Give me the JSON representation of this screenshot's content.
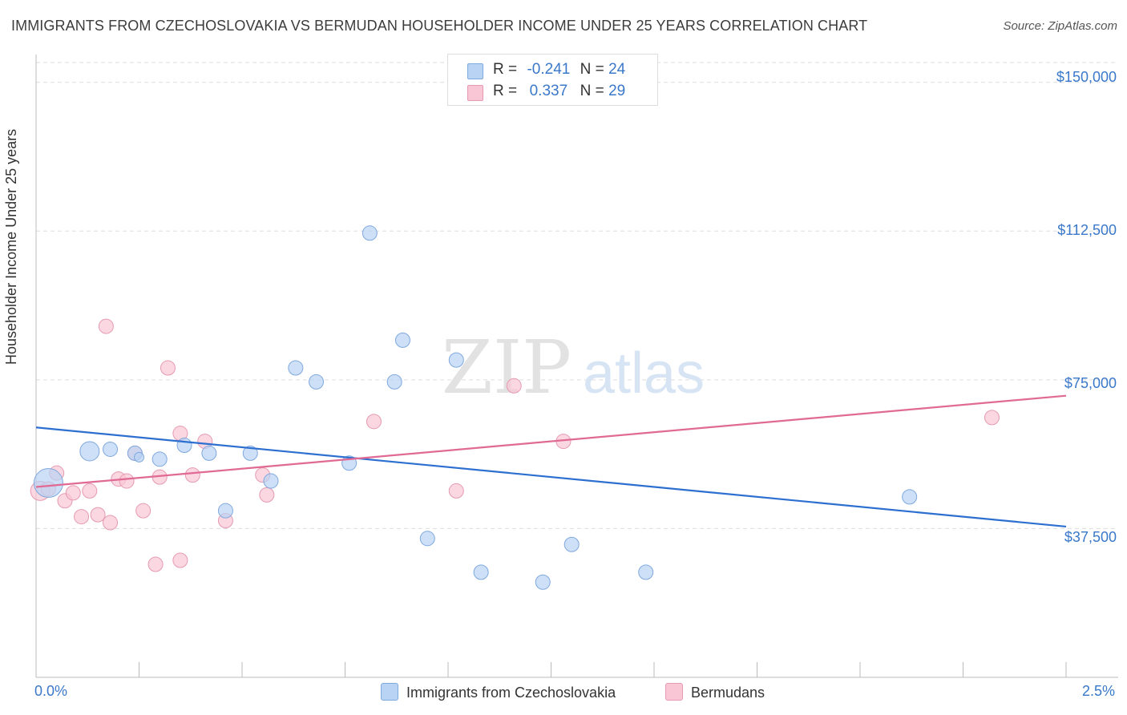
{
  "title": "IMMIGRANTS FROM CZECHOSLOVAKIA VS BERMUDAN HOUSEHOLDER INCOME UNDER 25 YEARS CORRELATION CHART",
  "source": "Source: ZipAtlas.com",
  "watermark": {
    "zip": "ZIP",
    "atlas": "atlas"
  },
  "legend": {
    "rows": [
      {
        "r_label": "R =",
        "r_value": "-0.241",
        "n_label": "N =",
        "n_value": "24"
      },
      {
        "r_label": "R =",
        "r_value": "0.337",
        "n_label": "N =",
        "n_value": "29"
      }
    ]
  },
  "bottom_legend": {
    "series1": "Immigrants from Czechoslovakia",
    "series2": "Bermudans"
  },
  "colors": {
    "blue_fill": "#b8d3f4",
    "blue_stroke": "#7fa8dd",
    "blue_line": "#2d6fd0",
    "pink_fill": "#f9c6d5",
    "pink_stroke": "#e59ab1",
    "pink_line": "#e06a93",
    "tick_text": "#3a78c9",
    "grid": "#dddddd"
  },
  "chart_data": {
    "type": "scatter",
    "title": "IMMIGRANTS FROM CZECHOSLOVAKIA VS BERMUDAN HOUSEHOLDER INCOME UNDER 25 YEARS CORRELATION CHART",
    "xlabel": "",
    "ylabel": "Householder Income Under 25 years",
    "xlim": [
      0.0,
      2.5
    ],
    "ylim": [
      0,
      155000
    ],
    "x_tick_labels": [
      "0.0%",
      "2.5%"
    ],
    "y_ticks": [
      37500,
      75000,
      112500,
      150000
    ],
    "y_tick_labels": [
      "$37,500",
      "$75,000",
      "$112,500",
      "$150,000"
    ],
    "series": [
      {
        "name": "Immigrants from Czechoslovakia",
        "r": -0.241,
        "n": 24,
        "trend": {
          "x": [
            0.0,
            2.5
          ],
          "y": [
            63000,
            38000
          ]
        },
        "points": [
          {
            "x": 0.03,
            "y": 49000,
            "size": 3
          },
          {
            "x": 0.13,
            "y": 57000,
            "size": 2
          },
          {
            "x": 0.18,
            "y": 57500,
            "size": 1.5
          },
          {
            "x": 0.24,
            "y": 56500,
            "size": 1.5
          },
          {
            "x": 0.25,
            "y": 55500,
            "size": 1
          },
          {
            "x": 0.3,
            "y": 55000,
            "size": 1.5
          },
          {
            "x": 0.36,
            "y": 58500,
            "size": 1.5
          },
          {
            "x": 0.42,
            "y": 56500,
            "size": 1.5
          },
          {
            "x": 0.46,
            "y": 42000,
            "size": 1.5
          },
          {
            "x": 0.52,
            "y": 56500,
            "size": 1.5
          },
          {
            "x": 0.57,
            "y": 49500,
            "size": 1.5
          },
          {
            "x": 0.63,
            "y": 78000,
            "size": 1.5
          },
          {
            "x": 0.68,
            "y": 74500,
            "size": 1.5
          },
          {
            "x": 0.76,
            "y": 54000,
            "size": 1.5
          },
          {
            "x": 0.81,
            "y": 112000,
            "size": 1.5
          },
          {
            "x": 0.87,
            "y": 74500,
            "size": 1.5
          },
          {
            "x": 0.89,
            "y": 85000,
            "size": 1.5
          },
          {
            "x": 0.95,
            "y": 35000,
            "size": 1.5
          },
          {
            "x": 1.02,
            "y": 80000,
            "size": 1.5
          },
          {
            "x": 1.08,
            "y": 26500,
            "size": 1.5
          },
          {
            "x": 1.23,
            "y": 24000,
            "size": 1.5
          },
          {
            "x": 1.3,
            "y": 33500,
            "size": 1.5
          },
          {
            "x": 1.48,
            "y": 26500,
            "size": 1.5
          },
          {
            "x": 2.12,
            "y": 45500,
            "size": 1.5
          }
        ]
      },
      {
        "name": "Bermudans",
        "r": 0.337,
        "n": 29,
        "trend": {
          "x": [
            0.0,
            2.5
          ],
          "y": [
            48000,
            71000
          ]
        },
        "points": [
          {
            "x": 0.01,
            "y": 47000,
            "size": 2
          },
          {
            "x": 0.03,
            "y": 47500,
            "size": 1.5
          },
          {
            "x": 0.05,
            "y": 51500,
            "size": 1.5
          },
          {
            "x": 0.07,
            "y": 44500,
            "size": 1.5
          },
          {
            "x": 0.09,
            "y": 46500,
            "size": 1.5
          },
          {
            "x": 0.11,
            "y": 40500,
            "size": 1.5
          },
          {
            "x": 0.13,
            "y": 47000,
            "size": 1.5
          },
          {
            "x": 0.15,
            "y": 41000,
            "size": 1.5
          },
          {
            "x": 0.17,
            "y": 88500,
            "size": 1.5
          },
          {
            "x": 0.18,
            "y": 39000,
            "size": 1.5
          },
          {
            "x": 0.2,
            "y": 50000,
            "size": 1.5
          },
          {
            "x": 0.22,
            "y": 49500,
            "size": 1.5
          },
          {
            "x": 0.24,
            "y": 56500,
            "size": 1.5
          },
          {
            "x": 0.26,
            "y": 42000,
            "size": 1.5
          },
          {
            "x": 0.29,
            "y": 28500,
            "size": 1.5
          },
          {
            "x": 0.3,
            "y": 50500,
            "size": 1.5
          },
          {
            "x": 0.32,
            "y": 78000,
            "size": 1.5
          },
          {
            "x": 0.35,
            "y": 29500,
            "size": 1.5
          },
          {
            "x": 0.35,
            "y": 61500,
            "size": 1.5
          },
          {
            "x": 0.38,
            "y": 51000,
            "size": 1.5
          },
          {
            "x": 0.41,
            "y": 59500,
            "size": 1.5
          },
          {
            "x": 0.46,
            "y": 39500,
            "size": 1.5
          },
          {
            "x": 0.55,
            "y": 51000,
            "size": 1.5
          },
          {
            "x": 0.56,
            "y": 46000,
            "size": 1.5
          },
          {
            "x": 0.82,
            "y": 64500,
            "size": 1.5
          },
          {
            "x": 1.02,
            "y": 47000,
            "size": 1.5
          },
          {
            "x": 1.16,
            "y": 73500,
            "size": 1.5
          },
          {
            "x": 1.28,
            "y": 59500,
            "size": 1.5
          },
          {
            "x": 2.32,
            "y": 65500,
            "size": 1.5
          }
        ]
      }
    ]
  }
}
